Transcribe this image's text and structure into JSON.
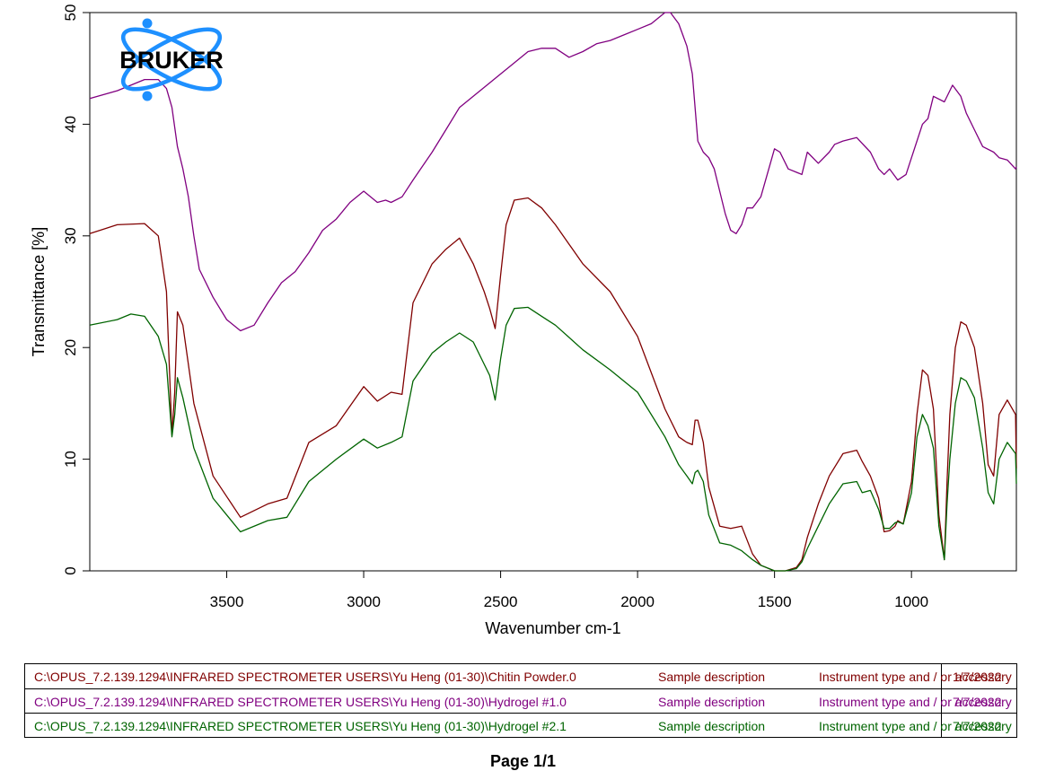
{
  "chart_data": {
    "type": "line",
    "title": "",
    "xlabel": "Wavenumber cm-1",
    "ylabel": "Transmittance [%]",
    "xlim": [
      4000,
      400
    ],
    "ylim": [
      0,
      50
    ],
    "x_ticks": [
      3500,
      3000,
      2500,
      2000,
      1500,
      1000
    ],
    "y_ticks": [
      0,
      10,
      20,
      30,
      40,
      50
    ],
    "grid": false,
    "legend_position": "bottom",
    "series": [
      {
        "name": "Chitin Powder.0",
        "color": "#800000",
        "x": [
          4000,
          3900,
          3800,
          3750,
          3720,
          3700,
          3690,
          3680,
          3660,
          3620,
          3550,
          3450,
          3350,
          3280,
          3200,
          3100,
          3000,
          2950,
          2900,
          2860,
          2820,
          2750,
          2700,
          2650,
          2600,
          2560,
          2540,
          2520,
          2500,
          2480,
          2450,
          2400,
          2350,
          2300,
          2200,
          2100,
          2000,
          1900,
          1850,
          1820,
          1800,
          1790,
          1780,
          1760,
          1740,
          1700,
          1660,
          1620,
          1580,
          1550,
          1500,
          1460,
          1420,
          1400,
          1380,
          1340,
          1300,
          1250,
          1200,
          1180,
          1150,
          1120,
          1100,
          1080,
          1060,
          1050,
          1030,
          1000,
          980,
          960,
          940,
          920,
          900,
          880,
          870,
          860,
          840,
          820,
          800,
          770,
          740,
          720,
          700,
          680,
          650,
          620,
          600
        ],
        "y": [
          30.2,
          31.0,
          31.1,
          30.0,
          25.0,
          12.2,
          16.0,
          23.2,
          22.0,
          15.0,
          8.5,
          4.8,
          6.0,
          6.5,
          11.5,
          13.0,
          16.5,
          15.2,
          16.0,
          15.8,
          24.0,
          27.5,
          28.8,
          29.8,
          27.5,
          25.0,
          23.5,
          21.7,
          26.5,
          31.0,
          33.2,
          33.4,
          32.5,
          31.0,
          27.5,
          25.0,
          21.0,
          14.5,
          12.0,
          11.5,
          11.3,
          13.5,
          13.5,
          11.5,
          7.5,
          4.0,
          3.8,
          4.0,
          1.5,
          0.5,
          0.0,
          0.0,
          0.3,
          1.0,
          3.0,
          6.0,
          8.5,
          10.5,
          10.8,
          9.8,
          8.5,
          6.5,
          3.5,
          3.6,
          4.0,
          4.5,
          4.2,
          8.0,
          14.0,
          18.0,
          17.5,
          14.5,
          5.0,
          1.0,
          8.0,
          14.0,
          20.0,
          22.3,
          22.0,
          20.0,
          15.0,
          9.5,
          8.5,
          14.0,
          15.3,
          14.0,
          9.2
        ]
      },
      {
        "name": "Hydrogel #1.0",
        "color": "#800080",
        "x": [
          4000,
          3900,
          3850,
          3800,
          3750,
          3720,
          3700,
          3680,
          3660,
          3640,
          3620,
          3600,
          3550,
          3500,
          3450,
          3400,
          3350,
          3300,
          3250,
          3200,
          3150,
          3100,
          3050,
          3000,
          2950,
          2920,
          2900,
          2860,
          2820,
          2750,
          2700,
          2650,
          2600,
          2550,
          2500,
          2450,
          2400,
          2350,
          2300,
          2250,
          2200,
          2150,
          2100,
          2050,
          2000,
          1950,
          1900,
          1880,
          1850,
          1820,
          1800,
          1780,
          1760,
          1740,
          1720,
          1700,
          1680,
          1660,
          1640,
          1620,
          1600,
          1580,
          1550,
          1500,
          1480,
          1450,
          1400,
          1380,
          1340,
          1300,
          1280,
          1250,
          1200,
          1150,
          1120,
          1100,
          1080,
          1050,
          1020,
          1000,
          960,
          940,
          920,
          880,
          850,
          820,
          800,
          770,
          740,
          700,
          680,
          650,
          620,
          600
        ],
        "y": [
          42.3,
          43.0,
          43.5,
          44.0,
          44.0,
          43.2,
          41.5,
          38.0,
          36.0,
          33.5,
          30.0,
          27.0,
          24.5,
          22.5,
          21.5,
          22.0,
          24.0,
          25.8,
          26.8,
          28.5,
          30.5,
          31.5,
          33.0,
          34.0,
          33.0,
          33.2,
          33.0,
          33.5,
          35.0,
          37.5,
          39.5,
          41.5,
          42.5,
          43.5,
          44.5,
          45.5,
          46.5,
          46.8,
          46.8,
          46.0,
          46.5,
          47.2,
          47.5,
          48.0,
          48.5,
          49.0,
          50.0,
          50.0,
          49.0,
          47.0,
          44.5,
          38.5,
          37.5,
          37.0,
          36.0,
          34.0,
          32.0,
          30.5,
          30.2,
          31.0,
          32.5,
          32.5,
          33.5,
          37.8,
          37.5,
          36.0,
          35.5,
          37.5,
          36.5,
          37.5,
          38.2,
          38.5,
          38.8,
          37.5,
          36.0,
          35.5,
          36.0,
          35.0,
          35.5,
          37.0,
          40.0,
          40.5,
          42.5,
          42.0,
          43.5,
          42.5,
          41.0,
          39.5,
          38.0,
          37.5,
          37.0,
          36.8,
          36.0,
          36.2
        ]
      },
      {
        "name": "Hydrogel #2.1",
        "color": "#006400",
        "x": [
          4000,
          3900,
          3850,
          3800,
          3750,
          3720,
          3700,
          3690,
          3680,
          3660,
          3620,
          3550,
          3450,
          3350,
          3280,
          3200,
          3100,
          3000,
          2950,
          2900,
          2860,
          2820,
          2750,
          2700,
          2650,
          2600,
          2560,
          2540,
          2520,
          2500,
          2480,
          2450,
          2400,
          2350,
          2300,
          2200,
          2100,
          2000,
          1900,
          1850,
          1820,
          1800,
          1790,
          1780,
          1760,
          1740,
          1700,
          1660,
          1620,
          1580,
          1550,
          1500,
          1460,
          1420,
          1400,
          1380,
          1340,
          1300,
          1250,
          1200,
          1180,
          1150,
          1120,
          1100,
          1080,
          1060,
          1050,
          1030,
          1000,
          980,
          960,
          940,
          920,
          900,
          880,
          870,
          860,
          840,
          820,
          800,
          770,
          740,
          720,
          700,
          680,
          650,
          620,
          600
        ],
        "y": [
          22.0,
          22.5,
          23.0,
          22.8,
          21.0,
          18.5,
          12.0,
          14.0,
          17.3,
          15.5,
          11.0,
          6.5,
          3.5,
          4.5,
          4.8,
          8.0,
          10.0,
          11.8,
          11.0,
          11.5,
          12.0,
          17.0,
          19.5,
          20.5,
          21.3,
          20.5,
          18.5,
          17.5,
          15.3,
          19.0,
          22.0,
          23.5,
          23.6,
          22.8,
          22.0,
          19.8,
          18.0,
          16.0,
          12.0,
          9.5,
          8.5,
          7.8,
          8.8,
          9.0,
          8.0,
          5.0,
          2.5,
          2.3,
          1.8,
          1.0,
          0.5,
          0.0,
          0.0,
          0.2,
          0.8,
          2.0,
          4.0,
          6.0,
          7.8,
          8.0,
          7.0,
          7.2,
          5.5,
          3.8,
          3.8,
          4.3,
          4.4,
          4.2,
          7.0,
          12.0,
          14.0,
          13.0,
          11.0,
          4.0,
          1.0,
          6.0,
          10.0,
          15.0,
          17.3,
          17.0,
          15.5,
          11.0,
          7.0,
          6.0,
          10.0,
          11.5,
          10.5,
          7.8
        ]
      }
    ]
  },
  "legend": [
    {
      "path": "C:\\OPUS_7.2.139.1294\\INFRARED SPECTROMETER USERS\\Yu Heng (01-30)\\Chitin Powder.0",
      "desc": "Sample description",
      "inst": "Instrument type and / or accessory",
      "date": "1/7/2022",
      "color": "#800000"
    },
    {
      "path": "C:\\OPUS_7.2.139.1294\\INFRARED SPECTROMETER USERS\\Yu Heng (01-30)\\Hydrogel #1.0",
      "desc": "Sample description",
      "inst": "Instrument type and / or accessory",
      "date": "7/7/2022",
      "color": "#800080"
    },
    {
      "path": "C:\\OPUS_7.2.139.1294\\INFRARED SPECTROMETER USERS\\Yu Heng (01-30)\\Hydrogel #2.1",
      "desc": "Sample description",
      "inst": "Instrument type and / or accessory",
      "date": "7/7/2022",
      "color": "#006400"
    }
  ],
  "logo": {
    "text": "BRUKER",
    "color": "#1e90ff"
  },
  "footer": {
    "page": "Page 1/1"
  }
}
